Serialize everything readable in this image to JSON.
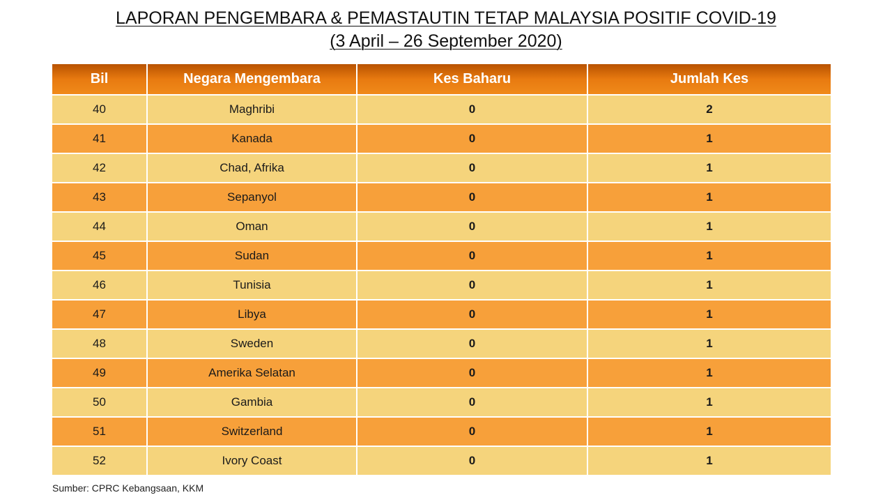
{
  "title": "LAPORAN PENGEMBARA & PEMASTAUTIN TETAP MALAYSIA POSITIF COVID-19",
  "subtitle": "(3 April –  26 September 2020)",
  "headers": [
    "Bil",
    "Negara Mengembara",
    "Kes Baharu",
    "Jumlah Kes"
  ],
  "colors": {
    "header": "#e87a10",
    "row_light": "#f5d47c",
    "row_dark": "#f7a03a"
  },
  "rows": [
    [
      "40",
      "Maghribi",
      "0",
      "2"
    ],
    [
      "41",
      "Kanada",
      "0",
      "1"
    ],
    [
      "42",
      "Chad, Afrika",
      "0",
      "1"
    ],
    [
      "43",
      "Sepanyol",
      "0",
      "1"
    ],
    [
      "44",
      "Oman",
      "0",
      "1"
    ],
    [
      "45",
      "Sudan",
      "0",
      "1"
    ],
    [
      "46",
      "Tunisia",
      "0",
      "1"
    ],
    [
      "47",
      "Libya",
      "0",
      "1"
    ],
    [
      "48",
      "Sweden",
      "0",
      "1"
    ],
    [
      "49",
      "Amerika Selatan",
      "0",
      "1"
    ],
    [
      "50",
      "Gambia",
      "0",
      "1"
    ],
    [
      "51",
      "Switzerland",
      "0",
      "1"
    ],
    [
      "52",
      "Ivory Coast",
      "0",
      "1"
    ]
  ],
  "source": "Sumber: CPRC Kebangsaan, KKM"
}
